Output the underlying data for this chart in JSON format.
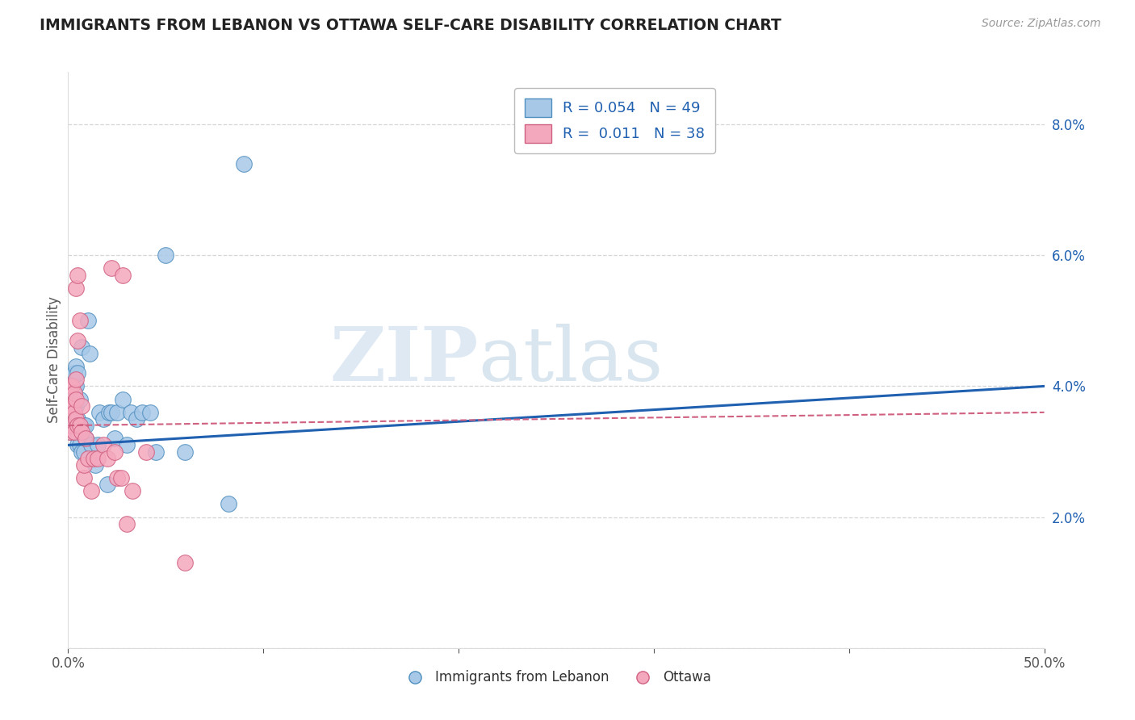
{
  "title": "IMMIGRANTS FROM LEBANON VS OTTAWA SELF-CARE DISABILITY CORRELATION CHART",
  "source": "Source: ZipAtlas.com",
  "ylabel": "Self-Care Disability",
  "y_ticks": [
    0.0,
    0.02,
    0.04,
    0.06,
    0.08
  ],
  "y_tick_labels": [
    "",
    "2.0%",
    "4.0%",
    "6.0%",
    "8.0%"
  ],
  "x_ticks": [
    0.0,
    0.1,
    0.2,
    0.3,
    0.4,
    0.5
  ],
  "x_tick_labels": [
    "0.0%",
    "",
    "",
    "",
    "",
    "50.0%"
  ],
  "x_range": [
    0.0,
    0.5
  ],
  "y_range": [
    0.005,
    0.088
  ],
  "legend_r1": "R = 0.054",
  "legend_n1": "N = 49",
  "legend_r2": "R =  0.011",
  "legend_n2": "N = 38",
  "blue_color": "#a8c8e8",
  "pink_color": "#f4a8be",
  "blue_edge_color": "#5090c0",
  "pink_edge_color": "#d06080",
  "blue_line_color": "#2060b0",
  "pink_line_color": "#d06080",
  "watermark_zip": "ZIP",
  "watermark_atlas": "atlas",
  "blue_scatter_x": [
    0.001,
    0.001,
    0.002,
    0.002,
    0.002,
    0.003,
    0.003,
    0.003,
    0.003,
    0.004,
    0.004,
    0.004,
    0.004,
    0.005,
    0.005,
    0.005,
    0.005,
    0.006,
    0.006,
    0.006,
    0.007,
    0.007,
    0.008,
    0.008,
    0.009,
    0.009,
    0.01,
    0.011,
    0.012,
    0.014,
    0.015,
    0.016,
    0.018,
    0.02,
    0.021,
    0.022,
    0.024,
    0.025,
    0.028,
    0.03,
    0.032,
    0.035,
    0.038,
    0.042,
    0.045,
    0.05,
    0.06,
    0.082,
    0.09
  ],
  "blue_scatter_y": [
    0.033,
    0.036,
    0.034,
    0.038,
    0.04,
    0.033,
    0.036,
    0.04,
    0.042,
    0.034,
    0.037,
    0.04,
    0.043,
    0.031,
    0.033,
    0.035,
    0.042,
    0.031,
    0.034,
    0.038,
    0.03,
    0.046,
    0.03,
    0.034,
    0.032,
    0.034,
    0.05,
    0.045,
    0.031,
    0.028,
    0.031,
    0.036,
    0.035,
    0.025,
    0.036,
    0.036,
    0.032,
    0.036,
    0.038,
    0.031,
    0.036,
    0.035,
    0.036,
    0.036,
    0.03,
    0.06,
    0.03,
    0.022,
    0.074
  ],
  "pink_scatter_x": [
    0.001,
    0.001,
    0.001,
    0.002,
    0.002,
    0.002,
    0.003,
    0.003,
    0.003,
    0.004,
    0.004,
    0.004,
    0.004,
    0.005,
    0.005,
    0.005,
    0.006,
    0.006,
    0.007,
    0.007,
    0.008,
    0.008,
    0.009,
    0.01,
    0.012,
    0.013,
    0.015,
    0.018,
    0.02,
    0.022,
    0.024,
    0.025,
    0.027,
    0.028,
    0.03,
    0.033,
    0.04,
    0.06
  ],
  "pink_scatter_y": [
    0.033,
    0.037,
    0.04,
    0.034,
    0.037,
    0.04,
    0.033,
    0.036,
    0.039,
    0.035,
    0.038,
    0.041,
    0.055,
    0.034,
    0.047,
    0.057,
    0.034,
    0.05,
    0.033,
    0.037,
    0.026,
    0.028,
    0.032,
    0.029,
    0.024,
    0.029,
    0.029,
    0.031,
    0.029,
    0.058,
    0.03,
    0.026,
    0.026,
    0.057,
    0.019,
    0.024,
    0.03,
    0.013
  ],
  "background_color": "#ffffff",
  "grid_color": "#cccccc",
  "blue_regline_x": [
    0.0,
    0.5
  ],
  "blue_regline_y": [
    0.031,
    0.04
  ],
  "pink_regline_x": [
    0.0,
    0.5
  ],
  "pink_regline_y": [
    0.034,
    0.036
  ]
}
